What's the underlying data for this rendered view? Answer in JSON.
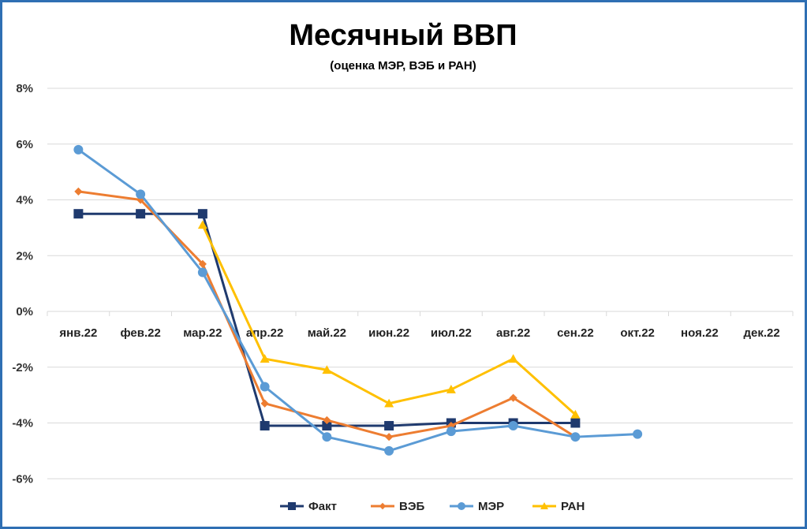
{
  "chart_data": {
    "type": "line",
    "title": "Месячный ВВП",
    "subtitle": "(оценка МЭР, ВЭБ и РАН)",
    "categories": [
      "янв.22",
      "фев.22",
      "мар.22",
      "апр.22",
      "май.22",
      "июн.22",
      "июл.22",
      "авг.22",
      "сен.22",
      "окт.22",
      "ноя.22",
      "дек.22"
    ],
    "yticks": [
      "-6%",
      "-4%",
      "-2%",
      "0%",
      "2%",
      "4%",
      "6%",
      "8%"
    ],
    "ylim": [
      -6,
      8
    ],
    "grid": true,
    "legend_position": "bottom",
    "series": [
      {
        "name": "Факт",
        "color": "#1f3a6e",
        "marker": "square",
        "values": [
          3.5,
          3.5,
          3.5,
          -4.1,
          -4.1,
          -4.1,
          -4.0,
          -4.0,
          -4.0,
          null,
          null,
          null
        ]
      },
      {
        "name": "ВЭБ",
        "color": "#ed7d31",
        "marker": "diamond",
        "values": [
          4.3,
          4.0,
          1.7,
          -3.3,
          -3.9,
          -4.5,
          -4.1,
          -3.1,
          -4.5,
          null,
          null,
          null
        ]
      },
      {
        "name": "МЭР",
        "color": "#5b9bd5",
        "marker": "circle",
        "values": [
          5.8,
          4.2,
          1.4,
          -2.7,
          -4.5,
          -5.0,
          -4.3,
          -4.1,
          -4.5,
          -4.4,
          null,
          null
        ]
      },
      {
        "name": "РАН",
        "color": "#ffc000",
        "marker": "triangle",
        "values": [
          null,
          null,
          3.1,
          -1.7,
          -2.1,
          -3.3,
          -2.8,
          -1.7,
          -3.7,
          null,
          null,
          null
        ]
      }
    ]
  }
}
